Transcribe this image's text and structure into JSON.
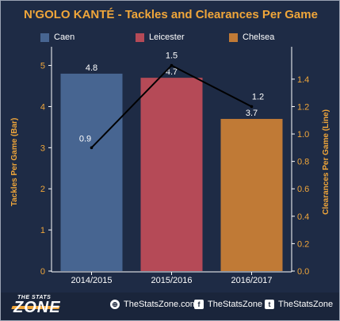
{
  "chart_data": {
    "type": "bar",
    "title": "N'GOLO KANTÉ  - Tackles and Clearances Per Game",
    "categories": [
      "2014/2015",
      "2015/2016",
      "2016/2017"
    ],
    "series": [
      {
        "name": "Tackles Per Game (Bar)",
        "type": "bar",
        "axis": "left",
        "values": [
          4.8,
          4.7,
          3.7
        ],
        "colors": [
          "#476591",
          "#b54a57",
          "#c07a36"
        ]
      },
      {
        "name": "Clearances Per Game (Line)",
        "type": "line",
        "axis": "right",
        "values": [
          0.9,
          1.5,
          1.2
        ],
        "color": "#000000"
      }
    ],
    "legend": {
      "position": "top",
      "entries": [
        {
          "label": "Caen",
          "color": "#476591"
        },
        {
          "label": "Leicester",
          "color": "#b54a57"
        },
        {
          "label": "Chelsea",
          "color": "#c07a36"
        }
      ]
    },
    "ylabel": "Tackles Per Game (Bar)",
    "ylabel_right": "Clearances Per Game (Line)",
    "ylim": [
      0,
      5.3
    ],
    "ylim_right": [
      0,
      1.59
    ],
    "yticks": [
      0,
      1,
      2,
      3,
      4,
      5
    ],
    "yticks_right": [
      "0.0",
      "0.2",
      "0.4",
      "0.6",
      "0.8",
      "1.0",
      "1.2",
      "1.4"
    ],
    "grid": false
  },
  "footer": {
    "logo_small": "THE STATS",
    "logo_big": "ZONE",
    "website": "TheStatsZone.com",
    "facebook": "TheStatsZone",
    "twitter": "TheStatsZone"
  },
  "colors": {
    "background": "#1e2b45",
    "accent": "#f0a63a",
    "axis": "#ffffff"
  }
}
